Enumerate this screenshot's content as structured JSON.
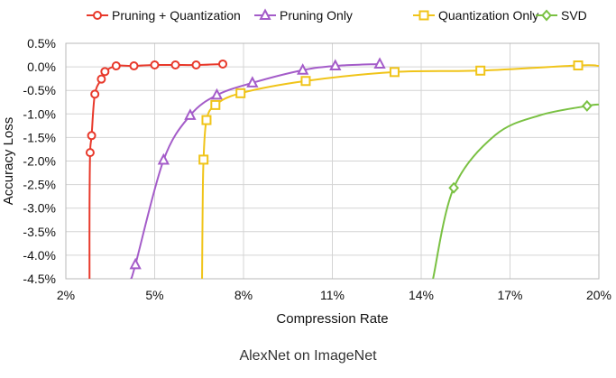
{
  "caption": "AlexNet on ImageNet",
  "chart_data": {
    "type": "line",
    "title": "",
    "xlabel": "Compression Rate",
    "ylabel": "Accuracy Loss",
    "xlim": [
      2,
      20
    ],
    "ylim": [
      -4.5,
      0.5
    ],
    "xticks": [
      2,
      5,
      8,
      11,
      14,
      17,
      20
    ],
    "xtick_labels": [
      "2%",
      "5%",
      "8%",
      "11%",
      "14%",
      "17%",
      "20%"
    ],
    "yticks": [
      0.5,
      0,
      -0.5,
      -1,
      -1.5,
      -2,
      -2.5,
      -3,
      -3.5,
      -4,
      -4.5
    ],
    "ytick_labels": [
      "0.5%",
      "0.0%",
      "-0.5%",
      "-1.0%",
      "-1.5%",
      "-2.0%",
      "-2.5%",
      "-3.0%",
      "-3.5%",
      "-4.0%",
      "-4.5%"
    ],
    "grid": true,
    "legend_position": "top",
    "series": [
      {
        "name": "Pruning + Quantization",
        "color": "#e8392b",
        "marker": "circle",
        "curve": [
          [
            2.8,
            -4.5
          ],
          [
            2.8,
            -3.0
          ],
          [
            2.82,
            -1.82
          ],
          [
            2.87,
            -1.46
          ],
          [
            2.98,
            -0.58
          ],
          [
            3.2,
            -0.26
          ],
          [
            3.32,
            -0.1
          ],
          [
            3.7,
            0.02
          ],
          [
            4.3,
            0.02
          ],
          [
            5.0,
            0.04
          ],
          [
            5.7,
            0.04
          ],
          [
            6.4,
            0.04
          ],
          [
            7.3,
            0.06
          ]
        ],
        "points": [
          [
            2.82,
            -1.82
          ],
          [
            2.87,
            -1.46
          ],
          [
            2.98,
            -0.58
          ],
          [
            3.2,
            -0.26
          ],
          [
            3.32,
            -0.1
          ],
          [
            3.7,
            0.02
          ],
          [
            4.3,
            0.02
          ],
          [
            5.0,
            0.04
          ],
          [
            5.7,
            0.04
          ],
          [
            6.4,
            0.04
          ],
          [
            7.3,
            0.06
          ]
        ]
      },
      {
        "name": "Pruning Only",
        "color": "#a45cc9",
        "marker": "triangle",
        "curve": [
          [
            4.2,
            -4.5
          ],
          [
            4.35,
            -4.2
          ],
          [
            5.3,
            -1.98
          ],
          [
            6.2,
            -1.03
          ],
          [
            7.1,
            -0.6
          ],
          [
            8.3,
            -0.34
          ],
          [
            10.0,
            -0.07
          ],
          [
            11.1,
            0.02
          ],
          [
            12.6,
            0.06
          ]
        ],
        "points": [
          [
            4.35,
            -4.2
          ],
          [
            5.3,
            -1.98
          ],
          [
            6.2,
            -1.03
          ],
          [
            7.1,
            -0.6
          ],
          [
            8.3,
            -0.34
          ],
          [
            10.0,
            -0.07
          ],
          [
            11.1,
            0.02
          ],
          [
            12.6,
            0.06
          ]
        ]
      },
      {
        "name": "Quantization Only",
        "color": "#f0c419",
        "marker": "square",
        "curve": [
          [
            6.6,
            -4.5
          ],
          [
            6.62,
            -3.0
          ],
          [
            6.65,
            -1.97
          ],
          [
            6.75,
            -1.13
          ],
          [
            7.05,
            -0.81
          ],
          [
            7.9,
            -0.56
          ],
          [
            10.1,
            -0.3
          ],
          [
            13.1,
            -0.11
          ],
          [
            16.0,
            -0.08
          ],
          [
            19.3,
            0.03
          ],
          [
            20.0,
            0.02
          ]
        ],
        "points": [
          [
            6.65,
            -1.97
          ],
          [
            6.75,
            -1.13
          ],
          [
            7.05,
            -0.81
          ],
          [
            7.9,
            -0.56
          ],
          [
            10.1,
            -0.3
          ],
          [
            13.1,
            -0.11
          ],
          [
            16.0,
            -0.08
          ],
          [
            19.3,
            0.03
          ]
        ]
      },
      {
        "name": "SVD",
        "color": "#7ac143",
        "marker": "diamond",
        "curve": [
          [
            14.4,
            -4.5
          ],
          [
            15.1,
            -2.57
          ],
          [
            16.5,
            -1.45
          ],
          [
            18.0,
            -1.03
          ],
          [
            19.6,
            -0.83
          ],
          [
            20.0,
            -0.8
          ]
        ],
        "points": [
          [
            15.1,
            -2.57
          ],
          [
            19.6,
            -0.83
          ]
        ]
      }
    ]
  }
}
